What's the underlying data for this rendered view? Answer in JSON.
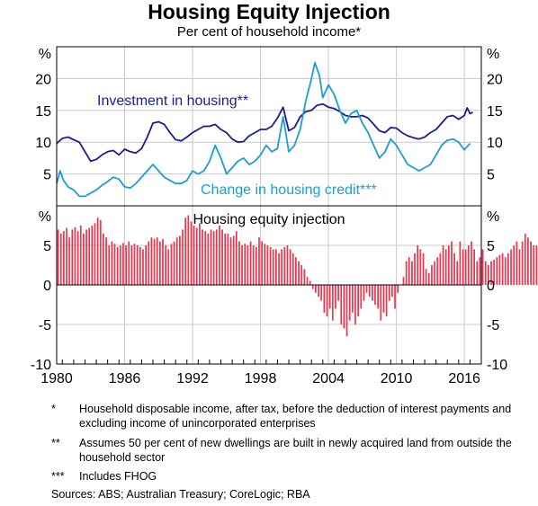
{
  "title": "Housing Equity Injection",
  "subtitle": "Per cent of household income*",
  "chart_data": [
    {
      "type": "line",
      "panel": "top",
      "ylabel": "%",
      "ylim": [
        0,
        25
      ],
      "yticks": [
        5,
        10,
        15,
        20
      ],
      "xlim": [
        1980,
        2017.5
      ],
      "xticks": [
        1980,
        1986,
        1992,
        1998,
        2004,
        2010,
        2016
      ],
      "series": [
        {
          "name": "Investment in housing**",
          "color": "#1a1f8f",
          "points": [
            [
              1980,
              9.8
            ],
            [
              1980.5,
              10.6
            ],
            [
              1981,
              10.8
            ],
            [
              1981.5,
              10.4
            ],
            [
              1982,
              10.0
            ],
            [
              1982.5,
              8.5
            ],
            [
              1983,
              7.0
            ],
            [
              1983.5,
              7.3
            ],
            [
              1984,
              8.0
            ],
            [
              1984.5,
              8.5
            ],
            [
              1985,
              8.7
            ],
            [
              1985.5,
              8.0
            ],
            [
              1986,
              8.9
            ],
            [
              1986.5,
              8.5
            ],
            [
              1987,
              8.3
            ],
            [
              1987.5,
              9.0
            ],
            [
              1988,
              10.8
            ],
            [
              1988.5,
              13.0
            ],
            [
              1989,
              13.2
            ],
            [
              1989.5,
              12.8
            ],
            [
              1990,
              11.5
            ],
            [
              1990.5,
              10.4
            ],
            [
              1991,
              10.2
            ],
            [
              1991.5,
              10.8
            ],
            [
              1992,
              11.5
            ],
            [
              1992.5,
              12.0
            ],
            [
              1993,
              12.5
            ],
            [
              1993.5,
              12.5
            ],
            [
              1994,
              12.8
            ],
            [
              1994.5,
              12.0
            ],
            [
              1995,
              11.5
            ],
            [
              1995.5,
              10.5
            ],
            [
              1996,
              10.0
            ],
            [
              1996.5,
              10.1
            ],
            [
              1997,
              11.0
            ],
            [
              1997.5,
              11.5
            ],
            [
              1998,
              12.0
            ],
            [
              1998.5,
              12.0
            ],
            [
              1999,
              12.5
            ],
            [
              1999.5,
              13.8
            ],
            [
              2000,
              15.5
            ],
            [
              2000.5,
              11.8
            ],
            [
              2001,
              12.3
            ],
            [
              2001.5,
              14.0
            ],
            [
              2002,
              14.8
            ],
            [
              2002.5,
              15.0
            ],
            [
              2003,
              15.8
            ],
            [
              2003.5,
              16.0
            ],
            [
              2004,
              15.5
            ],
            [
              2004.5,
              15.3
            ],
            [
              2005,
              14.8
            ],
            [
              2005.5,
              14.2
            ],
            [
              2006,
              14.0
            ],
            [
              2006.5,
              14.0
            ],
            [
              2007,
              14.2
            ],
            [
              2007.5,
              13.8
            ],
            [
              2008,
              12.8
            ],
            [
              2008.5,
              11.8
            ],
            [
              2009,
              11.5
            ],
            [
              2009.5,
              12.3
            ],
            [
              2010,
              12.2
            ],
            [
              2010.5,
              11.5
            ],
            [
              2011,
              11.0
            ],
            [
              2011.5,
              10.7
            ],
            [
              2012,
              10.5
            ],
            [
              2012.5,
              10.8
            ],
            [
              2013,
              11.5
            ],
            [
              2013.5,
              12.0
            ],
            [
              2014,
              13.0
            ],
            [
              2014.5,
              14.0
            ],
            [
              2015,
              14.2
            ],
            [
              2015.5,
              13.6
            ],
            [
              2016,
              14.2
            ],
            [
              2016.25,
              15.4
            ],
            [
              2016.5,
              14.5
            ],
            [
              2016.75,
              14.7
            ]
          ]
        },
        {
          "name": "Change in housing credit***",
          "color": "#1a9fd0",
          "points": [
            [
              1980,
              3.5
            ],
            [
              1980.3,
              5.5
            ],
            [
              1980.6,
              4.0
            ],
            [
              1981,
              3.0
            ],
            [
              1981.5,
              2.5
            ],
            [
              1982,
              1.5
            ],
            [
              1982.5,
              1.5
            ],
            [
              1983,
              2.0
            ],
            [
              1983.5,
              2.5
            ],
            [
              1984,
              3.2
            ],
            [
              1984.5,
              3.8
            ],
            [
              1985,
              4.5
            ],
            [
              1985.5,
              4.2
            ],
            [
              1986,
              3.0
            ],
            [
              1986.5,
              2.8
            ],
            [
              1987,
              3.5
            ],
            [
              1987.5,
              4.5
            ],
            [
              1988,
              5.5
            ],
            [
              1988.5,
              6.5
            ],
            [
              1989,
              5.5
            ],
            [
              1989.5,
              4.5
            ],
            [
              1990,
              4.0
            ],
            [
              1990.5,
              3.5
            ],
            [
              1991,
              3.5
            ],
            [
              1991.5,
              4.0
            ],
            [
              1992,
              5.5
            ],
            [
              1992.5,
              5.0
            ],
            [
              1993,
              5.5
            ],
            [
              1993.5,
              7.0
            ],
            [
              1994,
              9.5
            ],
            [
              1994.5,
              7.5
            ],
            [
              1995,
              5.0
            ],
            [
              1995.5,
              6.0
            ],
            [
              1996,
              7.0
            ],
            [
              1996.5,
              7.5
            ],
            [
              1997,
              6.5
            ],
            [
              1997.5,
              7.0
            ],
            [
              1998,
              8.0
            ],
            [
              1998.5,
              9.5
            ],
            [
              1999,
              8.5
            ],
            [
              1999.5,
              9.0
            ],
            [
              2000,
              14.0
            ],
            [
              2000.5,
              8.5
            ],
            [
              2001,
              9.5
            ],
            [
              2001.5,
              12.0
            ],
            [
              2002,
              16.5
            ],
            [
              2002.5,
              20.0
            ],
            [
              2002.8,
              22.5
            ],
            [
              2003.2,
              20.5
            ],
            [
              2003.5,
              17.0
            ],
            [
              2004,
              19.0
            ],
            [
              2004.5,
              17.5
            ],
            [
              2005,
              15.0
            ],
            [
              2005.5,
              13.0
            ],
            [
              2006,
              14.5
            ],
            [
              2006.5,
              15.0
            ],
            [
              2007,
              13.0
            ],
            [
              2007.5,
              11.5
            ],
            [
              2008,
              9.5
            ],
            [
              2008.5,
              7.5
            ],
            [
              2009,
              8.5
            ],
            [
              2009.5,
              10.5
            ],
            [
              2010,
              9.5
            ],
            [
              2010.5,
              8.0
            ],
            [
              2011,
              6.5
            ],
            [
              2011.5,
              6.0
            ],
            [
              2012,
              5.5
            ],
            [
              2012.5,
              6.0
            ],
            [
              2013,
              6.5
            ],
            [
              2013.5,
              8.0
            ],
            [
              2014,
              9.5
            ],
            [
              2014.5,
              10.3
            ],
            [
              2015,
              10.5
            ],
            [
              2015.5,
              10.0
            ],
            [
              2016,
              8.8
            ],
            [
              2016.5,
              9.8
            ]
          ]
        }
      ]
    },
    {
      "type": "bar",
      "panel": "bottom",
      "title": "Housing equity injection",
      "ylabel": "%",
      "ylim": [
        -10,
        10
      ],
      "yticks": [
        -10,
        -5,
        0,
        5
      ],
      "xlim": [
        1980,
        2017.5
      ],
      "xticks": [
        1980,
        1986,
        1992,
        1998,
        2004,
        2010,
        2016
      ],
      "color": "#e8374e",
      "start": 1980,
      "step": 0.25,
      "values": [
        7.0,
        6.5,
        6.8,
        7.2,
        6.0,
        7.0,
        7.3,
        6.8,
        7.5,
        6.5,
        7.0,
        7.2,
        7.5,
        7.8,
        8.5,
        8.2,
        6.5,
        6.0,
        5.0,
        5.5,
        5.2,
        4.8,
        5.0,
        5.3,
        5.0,
        5.5,
        5.0,
        5.2,
        5.0,
        4.8,
        4.5,
        5.0,
        5.5,
        6.0,
        5.8,
        6.0,
        5.5,
        5.8,
        5.0,
        4.5,
        5.2,
        5.5,
        6.0,
        6.2,
        7.0,
        8.5,
        8.8,
        8.0,
        7.5,
        7.2,
        7.8,
        7.0,
        6.8,
        6.5,
        7.0,
        6.8,
        7.0,
        7.5,
        7.0,
        6.5,
        6.5,
        6.0,
        6.2,
        6.8,
        5.5,
        5.0,
        5.2,
        5.0,
        5.5,
        5.0,
        4.8,
        6.0,
        5.5,
        5.2,
        5.0,
        4.8,
        4.5,
        4.5,
        4.0,
        4.5,
        4.8,
        5.0,
        4.5,
        4.0,
        3.5,
        3.0,
        2.5,
        2.0,
        1.0,
        0.5,
        -0.5,
        -1.0,
        -1.5,
        -2.0,
        -3.5,
        -4.0,
        -3.0,
        -4.5,
        -3.0,
        -2.0,
        -5.0,
        -5.5,
        -6.5,
        -4.5,
        -3.5,
        -5.0,
        -4.0,
        -3.0,
        -2.0,
        -1.0,
        -1.5,
        -2.0,
        -2.5,
        -3.0,
        -4.5,
        -3.5,
        -4.0,
        -2.0,
        -1.5,
        -3.0,
        -1.0,
        0.0,
        1.0,
        3.0,
        3.5,
        3.0,
        4.0,
        5.0,
        4.5,
        4.0,
        2.0,
        1.5,
        2.5,
        3.0,
        3.5,
        4.0,
        5.0,
        4.5,
        5.0,
        5.5,
        4.0,
        3.0,
        5.5,
        4.5,
        4.5,
        5.0,
        5.5,
        4.5,
        3.0,
        3.5,
        4.5,
        3.0,
        2.5,
        3.0,
        3.2,
        3.5,
        3.8,
        4.0,
        3.5,
        4.0,
        4.5,
        5.0,
        5.5,
        4.5,
        5.5,
        6.5,
        6.0,
        5.5,
        5.0,
        5.0
      ]
    }
  ],
  "notes": [
    {
      "marker": "*",
      "text": "Household disposable income, after tax, before the deduction of interest payments and excluding income of unincorporated enterprises"
    },
    {
      "marker": "**",
      "text": "Assumes 50 per cent of new dwellings are built in newly acquired land from outside the household sector"
    },
    {
      "marker": "***",
      "text": "Includes FHOG"
    }
  ],
  "sources": "Sources:   ABS; Australian Treasury; CoreLogic; RBA"
}
